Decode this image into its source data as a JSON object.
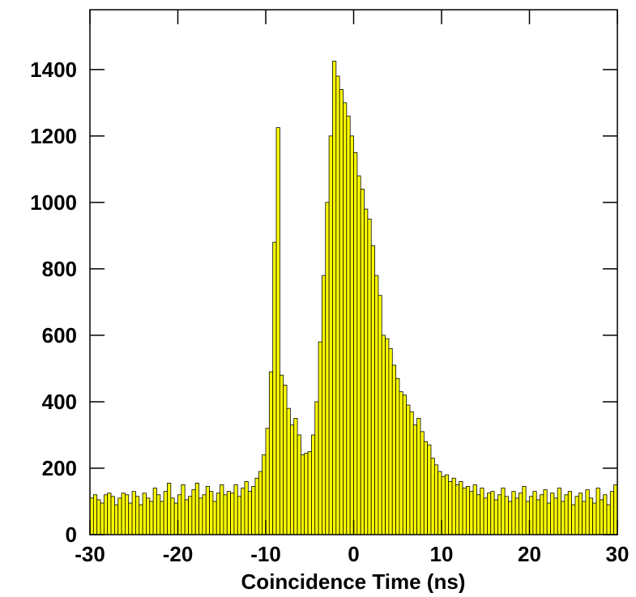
{
  "chart_data": {
    "type": "histogram",
    "x_label": "Coincidence Time (ns)",
    "color": "#ffff00",
    "bins": [
      -30,
      -29.6,
      -29.2,
      -28.8,
      -28.4,
      -28,
      -27.6,
      -27.2,
      -26.8,
      -26.4,
      -26,
      -25.6,
      -25.2,
      -24.8,
      -24.4,
      -24,
      -23.6,
      -23.2,
      -22.8,
      -22.4,
      -22,
      -21.6,
      -21.2,
      -20.8,
      -20.4,
      -20,
      -19.6,
      -19.2,
      -18.8,
      -18.4,
      -18,
      -17.6,
      -17.2,
      -16.8,
      -16.4,
      -16,
      -15.6,
      -15.2,
      -14.8,
      -14.4,
      -14,
      -13.6,
      -13.2,
      -12.8,
      -12.4,
      -12,
      -11.6,
      -11.2,
      -10.8,
      -10.4,
      -10,
      -9.6,
      -9.2,
      -8.8,
      -8.4,
      -8,
      -7.6,
      -7.2,
      -6.8,
      -6.4,
      -6,
      -5.6,
      -5.2,
      -4.8,
      -4.4,
      -4,
      -3.6,
      -3.2,
      -2.8,
      -2.4,
      -2,
      -1.6,
      -1.2,
      -0.8,
      -0.4,
      0,
      0.4,
      0.8,
      1.2,
      1.6,
      2,
      2.4,
      2.8,
      3.2,
      3.6,
      4,
      4.4,
      4.8,
      5.2,
      5.6,
      6,
      6.4,
      6.8,
      7.2,
      7.6,
      8,
      8.4,
      8.8,
      9.2,
      9.6,
      10,
      10.4,
      10.8,
      11.2,
      11.6,
      12,
      12.4,
      12.8,
      13.2,
      13.6,
      14,
      14.4,
      14.8,
      15.2,
      15.6,
      16,
      16.4,
      16.8,
      17.2,
      17.6,
      18,
      18.4,
      18.8,
      19.2,
      19.6,
      20,
      20.4,
      20.8,
      21.2,
      21.6,
      22,
      22.4,
      22.8,
      23.2,
      23.6,
      24,
      24.4,
      24.8,
      25.2,
      25.6,
      26,
      26.4,
      26.8,
      27.2,
      27.6,
      28,
      28.4,
      28.8,
      29.2,
      29.6,
      30
    ],
    "values": [
      110,
      120,
      105,
      95,
      120,
      125,
      115,
      90,
      110,
      125,
      120,
      95,
      130,
      115,
      90,
      125,
      110,
      100,
      140,
      120,
      100,
      130,
      155,
      110,
      95,
      120,
      150,
      105,
      115,
      135,
      155,
      110,
      120,
      145,
      130,
      100,
      125,
      150,
      120,
      130,
      125,
      150,
      115,
      140,
      160,
      130,
      145,
      170,
      190,
      240,
      320,
      490,
      880,
      1225,
      480,
      450,
      380,
      330,
      350,
      300,
      240,
      245,
      250,
      300,
      400,
      580,
      780,
      1000,
      1200,
      1425,
      1380,
      1340,
      1300,
      1260,
      1200,
      1150,
      1080,
      1040,
      980,
      950,
      870,
      780,
      720,
      600,
      590,
      560,
      510,
      470,
      430,
      420,
      390,
      370,
      330,
      350,
      310,
      280,
      270,
      230,
      210,
      190,
      175,
      180,
      160,
      170,
      150,
      160,
      140,
      145,
      130,
      150,
      120,
      140,
      110,
      125,
      130,
      105,
      120,
      140,
      115,
      100,
      130,
      110,
      125,
      145,
      100,
      115,
      130,
      105,
      120,
      135,
      95,
      125,
      110,
      140,
      100,
      120,
      130,
      90,
      115,
      125,
      100,
      135,
      110,
      95,
      140,
      105,
      120,
      90,
      130,
      150
    ],
    "xlim": [
      -30,
      30
    ],
    "xticks": [
      -30,
      -20,
      -10,
      0,
      10,
      20,
      30
    ],
    "ylim": [
      0,
      1580
    ],
    "yticks": [
      0,
      200,
      400,
      600,
      800,
      1000,
      1200,
      1400
    ]
  }
}
